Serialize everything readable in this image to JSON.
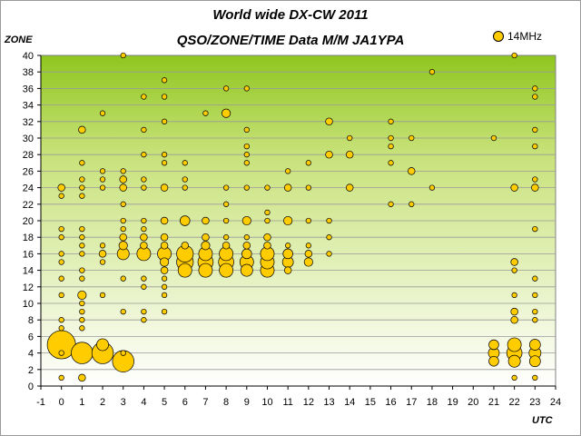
{
  "chart_data": {
    "type": "scatter",
    "title": "World wide DX-CW 2011",
    "subtitle": "QSO/ZONE/TIME Data M/M JA1YPA",
    "xlabel": "UTC",
    "ylabel": "ZONE",
    "legend": [
      "14MHz"
    ],
    "legend_position": "top-right",
    "xlim": [
      -1,
      24
    ],
    "ylim": [
      0,
      40
    ],
    "x_ticks": [
      -1,
      0,
      1,
      2,
      3,
      4,
      5,
      6,
      7,
      8,
      9,
      10,
      11,
      12,
      13,
      14,
      15,
      16,
      17,
      18,
      19,
      20,
      21,
      22,
      23,
      24
    ],
    "y_ticks": [
      0,
      2,
      4,
      6,
      8,
      10,
      12,
      14,
      16,
      18,
      20,
      22,
      24,
      26,
      28,
      30,
      32,
      34,
      36,
      38,
      40
    ],
    "grid": "horizontal",
    "series": [
      {
        "name": "14MHz",
        "color": "#ffcc00",
        "points": [
          [
            0,
            1,
            1
          ],
          [
            0,
            4,
            1
          ],
          [
            0,
            5,
            35
          ],
          [
            0,
            7,
            1
          ],
          [
            0,
            8,
            1
          ],
          [
            0,
            11,
            1
          ],
          [
            0,
            13,
            1
          ],
          [
            0,
            15,
            1
          ],
          [
            0,
            16,
            1
          ],
          [
            0,
            18,
            1
          ],
          [
            0,
            19,
            1
          ],
          [
            0,
            23,
            1
          ],
          [
            0,
            24,
            2
          ],
          [
            1,
            1,
            2
          ],
          [
            1,
            4,
            20
          ],
          [
            1,
            7,
            1
          ],
          [
            1,
            8,
            1
          ],
          [
            1,
            9,
            1
          ],
          [
            1,
            10,
            1
          ],
          [
            1,
            11,
            3
          ],
          [
            1,
            13,
            1
          ],
          [
            1,
            14,
            1
          ],
          [
            1,
            16,
            1
          ],
          [
            1,
            17,
            1
          ],
          [
            1,
            18,
            1
          ],
          [
            1,
            19,
            1
          ],
          [
            1,
            23,
            1
          ],
          [
            1,
            24,
            1
          ],
          [
            1,
            25,
            1
          ],
          [
            1,
            27,
            1
          ],
          [
            1,
            31,
            2
          ],
          [
            2,
            4,
            20
          ],
          [
            2,
            5,
            6
          ],
          [
            2,
            11,
            1
          ],
          [
            2,
            15,
            1
          ],
          [
            2,
            16,
            2
          ],
          [
            2,
            17,
            1
          ],
          [
            2,
            24,
            1
          ],
          [
            2,
            25,
            1
          ],
          [
            2,
            26,
            1
          ],
          [
            2,
            33,
            1
          ],
          [
            3,
            3,
            20
          ],
          [
            3,
            4,
            1
          ],
          [
            3,
            9,
            1
          ],
          [
            3,
            13,
            1
          ],
          [
            3,
            16,
            6
          ],
          [
            3,
            17,
            3
          ],
          [
            3,
            18,
            2
          ],
          [
            3,
            19,
            1
          ],
          [
            3,
            20,
            1
          ],
          [
            3,
            22,
            1
          ],
          [
            3,
            24,
            2
          ],
          [
            3,
            25,
            2
          ],
          [
            3,
            26,
            1
          ],
          [
            3,
            40,
            1
          ],
          [
            4,
            8,
            1
          ],
          [
            4,
            9,
            1
          ],
          [
            4,
            12,
            1
          ],
          [
            4,
            13,
            1
          ],
          [
            4,
            16,
            8
          ],
          [
            4,
            17,
            2
          ],
          [
            4,
            18,
            2
          ],
          [
            4,
            19,
            1
          ],
          [
            4,
            20,
            1
          ],
          [
            4,
            24,
            1
          ],
          [
            4,
            25,
            1
          ],
          [
            4,
            28,
            1
          ],
          [
            4,
            31,
            1
          ],
          [
            4,
            35,
            1
          ],
          [
            5,
            9,
            1
          ],
          [
            5,
            11,
            1
          ],
          [
            5,
            12,
            1
          ],
          [
            5,
            13,
            1
          ],
          [
            5,
            14,
            2
          ],
          [
            5,
            15,
            3
          ],
          [
            5,
            16,
            8
          ],
          [
            5,
            17,
            2
          ],
          [
            5,
            18,
            2
          ],
          [
            5,
            20,
            2
          ],
          [
            5,
            24,
            2
          ],
          [
            5,
            27,
            1
          ],
          [
            5,
            28,
            1
          ],
          [
            5,
            32,
            1
          ],
          [
            5,
            35,
            1
          ],
          [
            5,
            37,
            1
          ],
          [
            6,
            14,
            8
          ],
          [
            6,
            15,
            12
          ],
          [
            6,
            16,
            12
          ],
          [
            6,
            17,
            2
          ],
          [
            6,
            20,
            4
          ],
          [
            6,
            24,
            1
          ],
          [
            6,
            25,
            1
          ],
          [
            6,
            27,
            1
          ],
          [
            7,
            14,
            8
          ],
          [
            7,
            15,
            10
          ],
          [
            7,
            16,
            8
          ],
          [
            7,
            17,
            3
          ],
          [
            7,
            18,
            2
          ],
          [
            7,
            20,
            2
          ],
          [
            7,
            33,
            1
          ],
          [
            8,
            14,
            8
          ],
          [
            8,
            15,
            10
          ],
          [
            8,
            16,
            8
          ],
          [
            8,
            17,
            2
          ],
          [
            8,
            18,
            1
          ],
          [
            8,
            20,
            1
          ],
          [
            8,
            22,
            1
          ],
          [
            8,
            24,
            1
          ],
          [
            8,
            33,
            3
          ],
          [
            8,
            36,
            1
          ],
          [
            9,
            14,
            6
          ],
          [
            9,
            15,
            8
          ],
          [
            9,
            16,
            4
          ],
          [
            9,
            17,
            2
          ],
          [
            9,
            18,
            1
          ],
          [
            9,
            20,
            3
          ],
          [
            9,
            24,
            1
          ],
          [
            9,
            27,
            1
          ],
          [
            9,
            28,
            1
          ],
          [
            9,
            29,
            1
          ],
          [
            9,
            31,
            1
          ],
          [
            9,
            36,
            1
          ],
          [
            10,
            14,
            8
          ],
          [
            10,
            15,
            8
          ],
          [
            10,
            16,
            8
          ],
          [
            10,
            17,
            2
          ],
          [
            10,
            18,
            2
          ],
          [
            10,
            20,
            1
          ],
          [
            10,
            21,
            1
          ],
          [
            10,
            24,
            1
          ],
          [
            11,
            14,
            2
          ],
          [
            11,
            15,
            5
          ],
          [
            11,
            16,
            4
          ],
          [
            11,
            17,
            1
          ],
          [
            11,
            20,
            3
          ],
          [
            11,
            24,
            2
          ],
          [
            11,
            26,
            1
          ],
          [
            12,
            15,
            3
          ],
          [
            12,
            16,
            2
          ],
          [
            12,
            17,
            1
          ],
          [
            12,
            20,
            1
          ],
          [
            12,
            24,
            1
          ],
          [
            12,
            27,
            1
          ],
          [
            13,
            16,
            1
          ],
          [
            13,
            18,
            1
          ],
          [
            13,
            20,
            1
          ],
          [
            13,
            28,
            2
          ],
          [
            13,
            32,
            2
          ],
          [
            14,
            24,
            2
          ],
          [
            14,
            28,
            2
          ],
          [
            14,
            30,
            1
          ],
          [
            16,
            22,
            1
          ],
          [
            16,
            27,
            1
          ],
          [
            16,
            29,
            1
          ],
          [
            16,
            30,
            1
          ],
          [
            16,
            32,
            1
          ],
          [
            17,
            22,
            1
          ],
          [
            17,
            26,
            2
          ],
          [
            17,
            30,
            1
          ],
          [
            18,
            24,
            1
          ],
          [
            18,
            38,
            1
          ],
          [
            21,
            3,
            4
          ],
          [
            21,
            4,
            5
          ],
          [
            21,
            5,
            4
          ],
          [
            21,
            30,
            1
          ],
          [
            22,
            1,
            1
          ],
          [
            22,
            3,
            6
          ],
          [
            22,
            4,
            10
          ],
          [
            22,
            5,
            8
          ],
          [
            22,
            8,
            2
          ],
          [
            22,
            9,
            2
          ],
          [
            22,
            11,
            1
          ],
          [
            22,
            14,
            1
          ],
          [
            22,
            15,
            2
          ],
          [
            22,
            24,
            2
          ],
          [
            22,
            40,
            1
          ],
          [
            23,
            1,
            1
          ],
          [
            23,
            3,
            5
          ],
          [
            23,
            4,
            6
          ],
          [
            23,
            5,
            5
          ],
          [
            23,
            8,
            1
          ],
          [
            23,
            9,
            1
          ],
          [
            23,
            11,
            1
          ],
          [
            23,
            13,
            1
          ],
          [
            23,
            19,
            1
          ],
          [
            23,
            24,
            2
          ],
          [
            23,
            25,
            1
          ],
          [
            23,
            29,
            1
          ],
          [
            23,
            31,
            1
          ],
          [
            23,
            35,
            1
          ],
          [
            23,
            36,
            1
          ]
        ]
      }
    ]
  }
}
